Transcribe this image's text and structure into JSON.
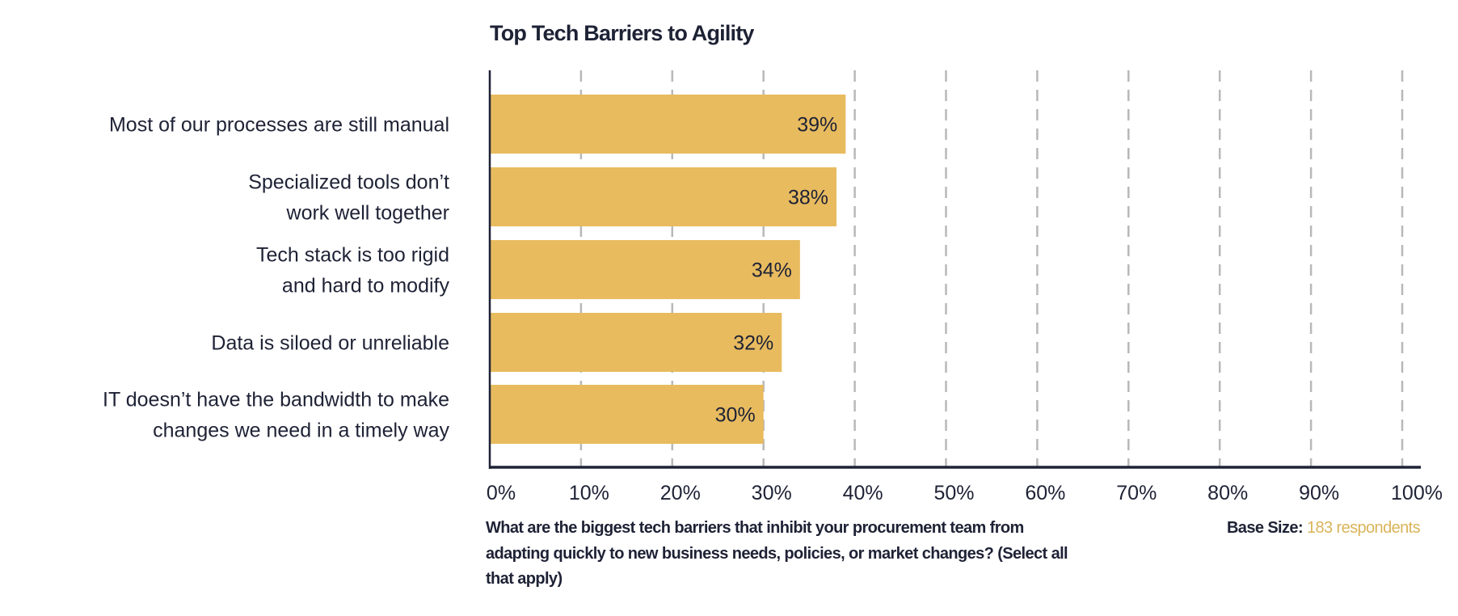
{
  "chart_data": {
    "type": "bar",
    "orientation": "horizontal",
    "title": "Top Tech Barriers to Agility",
    "categories": [
      [
        "Most of our processes are still manual"
      ],
      [
        "Specialized tools don’t",
        "work well together"
      ],
      [
        "Tech stack is too rigid",
        "and hard to modify"
      ],
      [
        "Data is siloed or unreliable"
      ],
      [
        "IT doesn’t have the bandwidth to make",
        "changes we need in a timely way"
      ]
    ],
    "values": [
      39,
      38,
      34,
      32,
      30
    ],
    "data_labels": [
      "39%",
      "38%",
      "34%",
      "32%",
      "30%"
    ],
    "xlim": [
      0,
      100
    ],
    "x_ticks": [
      "0%",
      "10%",
      "20%",
      "30%",
      "40%",
      "50%",
      "60%",
      "70%",
      "80%",
      "90%",
      "100%"
    ],
    "grid": "vertical dashed",
    "colors": {
      "bar": "#E8BB5F",
      "text": "#1E2235",
      "grid": "#B8B8B8",
      "accent": "#D9B45A"
    }
  },
  "footnote": {
    "question": "What are the biggest tech barriers that inhibit your procurement team from adapting quickly to new business needs, policies, or market changes? (Select all that apply)",
    "base_label": "Base Size:",
    "base_value": "183 respondents"
  }
}
